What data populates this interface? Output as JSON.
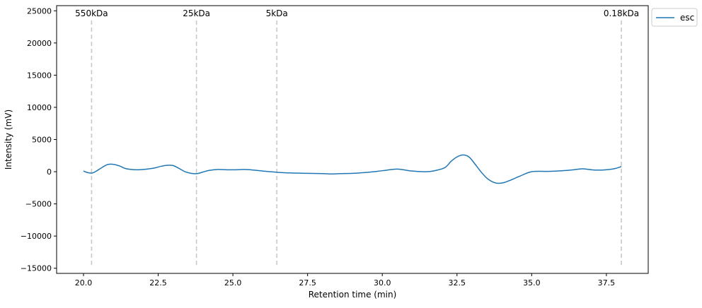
{
  "chart_data": {
    "type": "line",
    "title": "",
    "xlabel": "Retention time (min)",
    "ylabel": "Intensity (mV)",
    "xlim": [
      19.1,
      38.9
    ],
    "ylim": [
      -15800,
      25800
    ],
    "x_ticks": [
      {
        "value": 20.0,
        "label": "20.0"
      },
      {
        "value": 22.5,
        "label": "22.5"
      },
      {
        "value": 25.0,
        "label": "25.0"
      },
      {
        "value": 27.5,
        "label": "27.5"
      },
      {
        "value": 30.0,
        "label": "30.0"
      },
      {
        "value": 32.5,
        "label": "32.5"
      },
      {
        "value": 35.0,
        "label": "35.0"
      },
      {
        "value": 37.5,
        "label": "37.5"
      }
    ],
    "y_ticks": [
      {
        "value": -15000,
        "label": "−15000"
      },
      {
        "value": -10000,
        "label": "−10000"
      },
      {
        "value": -5000,
        "label": "−5000"
      },
      {
        "value": 0,
        "label": "0"
      },
      {
        "value": 5000,
        "label": "5000"
      },
      {
        "value": 10000,
        "label": "10000"
      },
      {
        "value": 15000,
        "label": "15000"
      },
      {
        "value": 20000,
        "label": "20000"
      },
      {
        "value": 25000,
        "label": "25000"
      }
    ],
    "grid": false,
    "legend_position": "outside-top-right",
    "markers": [
      {
        "label": "550kDa",
        "x": 20.27,
        "y_range": [
          -14500,
          23500
        ]
      },
      {
        "label": "25kDa",
        "x": 23.78,
        "y_range": [
          -14500,
          23500
        ]
      },
      {
        "label": "5kDa",
        "x": 26.47,
        "y_range": [
          -14500,
          23500
        ]
      },
      {
        "label": "0.18kDa",
        "x": 38.0,
        "y_range": [
          -14500,
          23500
        ]
      }
    ],
    "series": [
      {
        "name": "esc",
        "color": "#1f77b4",
        "x": [
          20.0,
          20.15,
          20.3,
          20.45,
          20.6,
          20.8,
          21.0,
          21.2,
          21.4,
          21.6,
          21.8,
          22.0,
          22.2,
          22.4,
          22.6,
          22.8,
          23.0,
          23.2,
          23.4,
          23.6,
          23.8,
          24.0,
          24.2,
          24.5,
          24.8,
          25.1,
          25.4,
          25.7,
          26.0,
          26.5,
          27.0,
          27.5,
          28.0,
          28.3,
          28.6,
          29.0,
          29.5,
          30.0,
          30.5,
          31.0,
          31.5,
          31.8,
          32.1,
          32.3,
          32.5,
          32.7,
          32.9,
          33.1,
          33.3,
          33.5,
          33.7,
          33.9,
          34.1,
          34.3,
          34.6,
          35.0,
          35.5,
          36.0,
          36.4,
          36.7,
          37.0,
          37.3,
          37.6,
          37.8,
          38.0
        ],
        "y": [
          100,
          -150,
          -200,
          150,
          600,
          1100,
          1150,
          900,
          500,
          350,
          300,
          350,
          450,
          600,
          850,
          1000,
          950,
          500,
          0,
          -250,
          -300,
          -50,
          200,
          350,
          300,
          300,
          350,
          250,
          100,
          -100,
          -200,
          -250,
          -300,
          -350,
          -300,
          -250,
          -100,
          150,
          400,
          100,
          0,
          200,
          650,
          1600,
          2300,
          2600,
          2300,
          1200,
          0,
          -1000,
          -1600,
          -1800,
          -1650,
          -1300,
          -700,
          0,
          50,
          150,
          300,
          450,
          300,
          250,
          350,
          500,
          800
        ]
      }
    ]
  }
}
